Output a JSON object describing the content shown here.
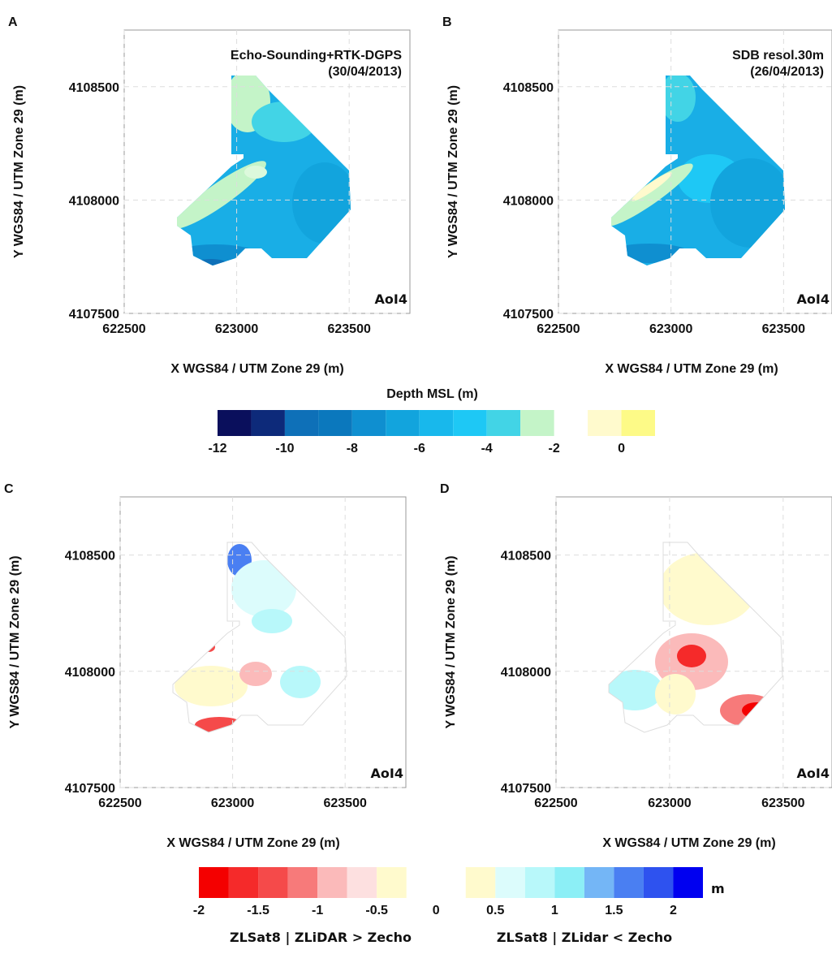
{
  "chart_data": [
    {
      "type": "map",
      "letter": "A",
      "annotation": "Echo-Sounding+RTK-DGPS",
      "annotation_date": "(30/04/2013)",
      "area_label": "AoI4",
      "x_label": "X WGS84 / UTM Zone 29 (m)",
      "y_label": "Y WGS84 / UTM Zone 29 (m)",
      "xlim": [
        622500,
        623770
      ],
      "ylim": [
        4107500,
        4108750
      ],
      "xticks": [
        622500,
        623000,
        623500
      ],
      "yticks": [
        4107500,
        4108000,
        4108500
      ],
      "grid": true
    },
    {
      "type": "map",
      "letter": "B",
      "annotation": "SDB resol.30m",
      "annotation_date": "(26/04/2013)",
      "area_label": "AoI4",
      "x_label": "X WGS84 / UTM Zone 29 (m)",
      "y_label": "Y WGS84 / UTM Zone 29 (m)",
      "xlim": [
        622500,
        623715
      ],
      "ylim": [
        4107500,
        4108750
      ],
      "xticks": [
        622500,
        623000,
        623500
      ],
      "yticks": [
        4107500,
        4108000,
        4108500
      ],
      "grid": true
    },
    {
      "type": "colorbar",
      "title": "Depth MSL (m)",
      "lim": [
        -12,
        1
      ],
      "ticks": [
        -12,
        -10,
        -8,
        -6,
        -4,
        -2,
        0
      ],
      "segments": [
        {
          "bins": [
            -12,
            -11,
            -10,
            -9,
            -8,
            -7,
            -6,
            -5,
            -4,
            -3,
            -2
          ],
          "colors": [
            "#0a0f5c",
            "#0d2a7a",
            "#0e70b8",
            "#0b78bd",
            "#0f8fd0",
            "#12a4dd",
            "#18b8ec",
            "#1ec8f5",
            "#42d4e6",
            "#c4f4c8",
            "#dcf9dc"
          ]
        },
        {
          "bins": [
            -1,
            0,
            1
          ],
          "colors": [
            "#fffacd",
            "#fdfa87"
          ]
        }
      ]
    },
    {
      "type": "map",
      "letter": "C",
      "area_label": "AoI4",
      "x_label": "X WGS84 / UTM Zone 29 (m)",
      "y_label": "Y WGS84 / UTM Zone 29 (m)",
      "xlim": [
        622500,
        623770
      ],
      "ylim": [
        4107500,
        4108750
      ],
      "xticks": [
        622500,
        623000,
        623500
      ],
      "yticks": [
        4107500,
        4108000,
        4108500
      ],
      "grid": true
    },
    {
      "type": "map",
      "letter": "D",
      "area_label": "AoI4",
      "x_label": "X WGS84 / UTM Zone 29 (m)",
      "y_label": "Y WGS84 / UTM Zone 29 (m)",
      "xlim": [
        622500,
        623715
      ],
      "ylim": [
        4107500,
        4108750
      ],
      "xticks": [
        622500,
        623000,
        623500
      ],
      "yticks": [
        4107500,
        4108000,
        4108500
      ],
      "grid": true
    },
    {
      "type": "colorbar",
      "unit": "m",
      "left_label": "ZLSat8 | ZLiDAR > Zecho",
      "right_label": "ZLSat8 | ZLidar < Zecho",
      "lim": [
        -2,
        2.25
      ],
      "ticks": [
        -2,
        -1.5,
        -1,
        -0.5,
        0,
        0.5,
        1,
        1.5,
        2
      ],
      "segments": [
        {
          "bins": [
            -2,
            -1.75,
            -1.5,
            -1.25,
            -1,
            -0.75,
            -0.5,
            -0.25
          ],
          "colors": [
            "#f40000",
            "#f52a2a",
            "#f54a4a",
            "#f77a7a",
            "#fbbaba",
            "#fde0e0",
            "#fffacd"
          ]
        },
        {
          "bins": [
            0.25,
            0.5,
            0.75,
            1,
            1.25,
            1.5,
            1.75,
            2,
            2.25
          ],
          "colors": [
            "#fffacd",
            "#dcfcfc",
            "#b8f8fa",
            "#8ceff6",
            "#74b6f6",
            "#4a7ff2",
            "#2e52ef",
            "#0000f0"
          ]
        }
      ]
    }
  ]
}
